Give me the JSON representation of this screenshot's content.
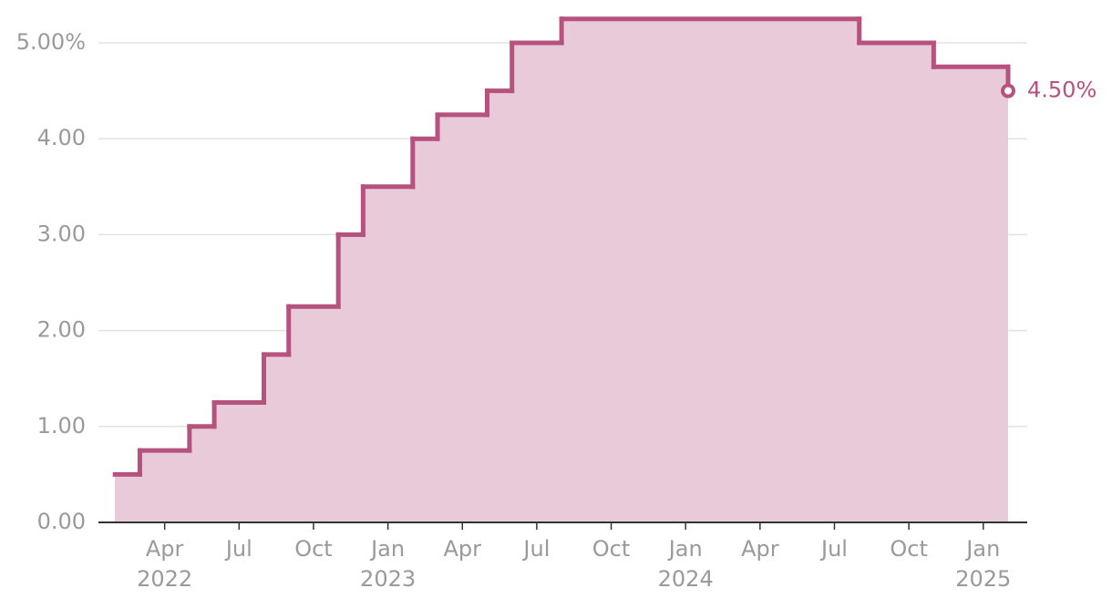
{
  "chart_data": {
    "type": "step",
    "x": [
      "2022-02",
      "2022-03",
      "2022-05",
      "2022-06",
      "2022-08",
      "2022-09",
      "2022-11",
      "2022-12",
      "2023-02",
      "2023-03",
      "2023-05",
      "2023-06",
      "2023-08",
      "2024-08",
      "2024-11",
      "2025-02"
    ],
    "values": [
      0.5,
      0.75,
      1.0,
      1.25,
      1.75,
      2.25,
      3.0,
      3.5,
      4.0,
      4.25,
      4.5,
      5.0,
      5.25,
      5.0,
      4.75,
      4.5
    ],
    "value_labels": [
      null,
      null,
      null,
      null,
      null,
      null,
      null,
      null,
      null,
      null,
      null,
      null,
      null,
      null,
      null,
      "4.50%"
    ],
    "color": "#b5527e",
    "fill_color": "#e8cad9",
    "xlim": [
      "2022-01",
      "2025-02"
    ],
    "xticks": [
      {
        "value": "2022-04",
        "label": "Apr",
        "year": "2022"
      },
      {
        "value": "2022-07",
        "label": "Jul"
      },
      {
        "value": "2022-10",
        "label": "Oct"
      },
      {
        "value": "2023-01",
        "label": "Jan",
        "year": "2023"
      },
      {
        "value": "2023-04",
        "label": "Apr"
      },
      {
        "value": "2023-07",
        "label": "Jul"
      },
      {
        "value": "2023-10",
        "label": "Oct"
      },
      {
        "value": "2024-01",
        "label": "Jan",
        "year": "2024"
      },
      {
        "value": "2024-04",
        "label": "Apr"
      },
      {
        "value": "2024-07",
        "label": "Jul"
      },
      {
        "value": "2024-10",
        "label": "Oct"
      },
      {
        "value": "2025-01",
        "label": "Jan",
        "year": "2025"
      }
    ],
    "ylim": [
      0,
      5.25
    ],
    "yticks": [
      {
        "value": 0,
        "label": "0.00"
      },
      {
        "value": 1,
        "label": "1.00"
      },
      {
        "value": 2,
        "label": "2.00"
      },
      {
        "value": 3,
        "label": "3.00"
      },
      {
        "value": 4,
        "label": "4.00"
      },
      {
        "value": 5,
        "label": "5.00%"
      }
    ],
    "grid": true
  }
}
